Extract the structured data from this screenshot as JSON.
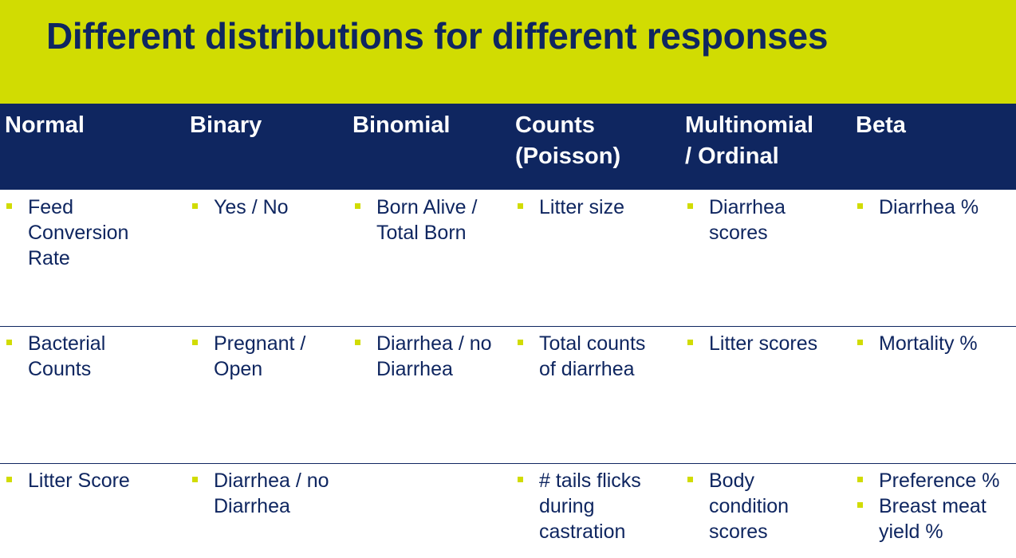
{
  "title": "Different distributions for different responses",
  "columns": [
    {
      "header": [
        "Normal"
      ],
      "rows": [
        [
          "Feed Conversion Rate"
        ],
        [
          "Bacterial Counts"
        ],
        [
          "Litter Score"
        ]
      ]
    },
    {
      "header": [
        "Binary"
      ],
      "rows": [
        [
          "Yes / No"
        ],
        [
          "Pregnant / Open"
        ],
        [
          "Diarrhea / no Diarrhea"
        ]
      ]
    },
    {
      "header": [
        "Binomial"
      ],
      "rows": [
        [
          "Born Alive / Total Born"
        ],
        [
          "Diarrhea / no Diarrhea"
        ],
        []
      ]
    },
    {
      "header": [
        "Counts",
        "(Poisson)"
      ],
      "rows": [
        [
          "Litter size"
        ],
        [
          "Total counts of diarrhea"
        ],
        [
          "# tails flicks during castration"
        ]
      ]
    },
    {
      "header": [
        "Multinomial",
        "/ Ordinal"
      ],
      "rows": [
        [
          "Diarrhea scores"
        ],
        [
          "Litter scores"
        ],
        [
          "Body condition scores"
        ]
      ]
    },
    {
      "header": [
        "Beta"
      ],
      "rows": [
        [
          "Diarrhea %"
        ],
        [
          "Mortality %"
        ],
        [
          "Preference %",
          "Breast meat yield %"
        ]
      ]
    }
  ],
  "colors": {
    "title_band": "#d1dc02",
    "header_band": "#0f2660",
    "text": "#0f2660",
    "bullet": "#d1dc02"
  }
}
